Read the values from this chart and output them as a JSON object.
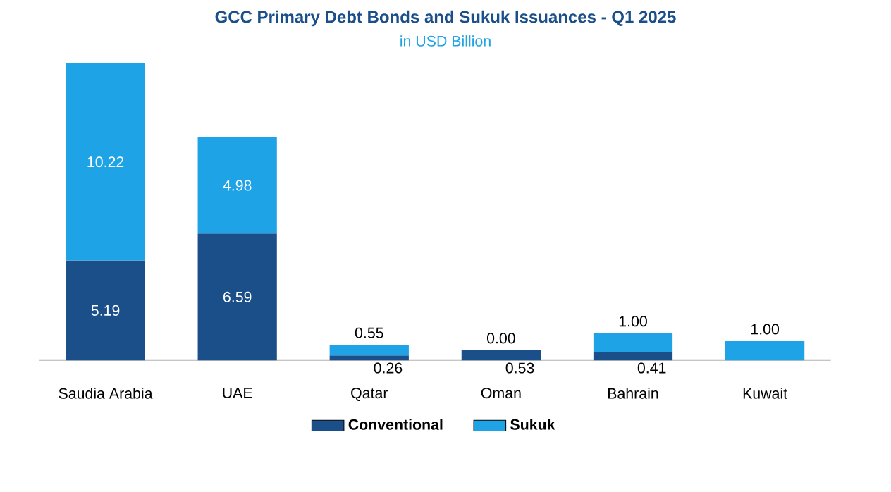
{
  "chart_data": {
    "type": "bar",
    "stacked": true,
    "title": "GCC Primary Debt Bonds and Sukuk Issuances - Q1 2025",
    "subtitle": "in USD Billion",
    "categories": [
      "Saudia Arabia",
      "UAE",
      "Qatar",
      "Oman",
      "Bahrain",
      "Kuwait"
    ],
    "series": [
      {
        "name": "Conventional",
        "color": "#1b4f8a",
        "values": [
          5.19,
          6.59,
          0.26,
          0.53,
          0.41,
          null
        ],
        "value_labels": [
          "5.19",
          "6.59",
          "0.26",
          "0.53",
          "0.41",
          null
        ]
      },
      {
        "name": "Sukuk",
        "color": "#1ea3e6",
        "values": [
          10.22,
          4.98,
          0.55,
          0.0,
          1.0,
          1.0
        ],
        "value_labels": [
          "10.22",
          "4.98",
          "0.55",
          "0.00",
          "1.00",
          "1.00"
        ]
      }
    ],
    "legend": "bottom"
  }
}
